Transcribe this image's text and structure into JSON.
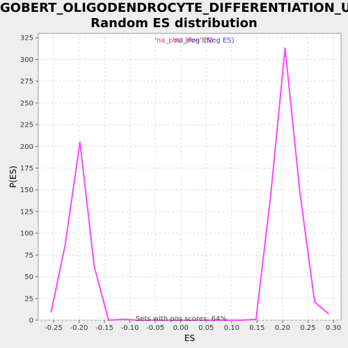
{
  "title": {
    "line1": "GOBERT_OLIGODENDROCYTE_DIFFERENTIATION_UP:",
    "line2": "Random ES distribution"
  },
  "legend": {
    "pos_label": "'na_pos' (Pos ES)",
    "neg_label": "'na_neg' (Neg ES)",
    "pos_color": "#e8414e",
    "neg_color": "#4444cc"
  },
  "note": "Sets with pos scores: 64%",
  "colors": {
    "line": "#ff44ff",
    "plot_bg": "#ffffff",
    "grid": "#e0e0e0",
    "page_bg": "#eeeeee"
  },
  "chart_data": {
    "type": "line",
    "xlabel": "ES",
    "ylabel": "P(ES)",
    "xlim": [
      -0.28,
      0.315
    ],
    "ylim": [
      0,
      330
    ],
    "x_ticks": [
      -0.25,
      -0.2,
      -0.15,
      -0.1,
      -0.05,
      0.0,
      0.05,
      0.1,
      0.15,
      0.2,
      0.25,
      0.3
    ],
    "x_tick_labels": [
      "-0.25",
      "-0.20",
      "-0.15",
      "-0.10",
      "-0.05",
      "0.00",
      "0.05",
      "0.10",
      "0.15",
      "0.20",
      "0.25",
      "0.30"
    ],
    "y_ticks": [
      0,
      25,
      50,
      75,
      100,
      125,
      150,
      175,
      200,
      225,
      250,
      275,
      300,
      325
    ],
    "y_tick_labels": [
      "0",
      "25",
      "50",
      "75",
      "100",
      "125",
      "150",
      "175",
      "200",
      "225",
      "250",
      "275",
      "300",
      "325"
    ],
    "grid": true,
    "series": [
      {
        "x": [
          -0.255,
          -0.227,
          -0.198,
          -0.17,
          -0.142,
          -0.113,
          -0.085,
          0.0,
          0.05,
          0.1,
          0.12,
          0.148,
          0.177,
          0.205,
          0.234,
          0.263,
          0.291
        ],
        "y": [
          9,
          87,
          205,
          62,
          0,
          1,
          0,
          0,
          0,
          0,
          0,
          1,
          145,
          313,
          148,
          21,
          7
        ]
      }
    ]
  }
}
